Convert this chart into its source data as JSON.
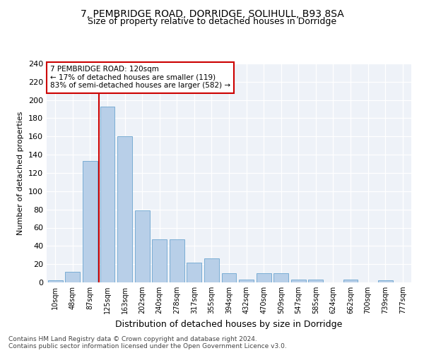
{
  "title": "7, PEMBRIDGE ROAD, DORRIDGE, SOLIHULL, B93 8SA",
  "subtitle": "Size of property relative to detached houses in Dorridge",
  "xlabel": "Distribution of detached houses by size in Dorridge",
  "ylabel": "Number of detached properties",
  "bar_labels": [
    "10sqm",
    "48sqm",
    "87sqm",
    "125sqm",
    "163sqm",
    "202sqm",
    "240sqm",
    "278sqm",
    "317sqm",
    "355sqm",
    "394sqm",
    "432sqm",
    "470sqm",
    "509sqm",
    "547sqm",
    "585sqm",
    "624sqm",
    "662sqm",
    "700sqm",
    "739sqm",
    "777sqm"
  ],
  "bar_values": [
    2,
    12,
    133,
    193,
    160,
    79,
    47,
    47,
    22,
    26,
    10,
    3,
    10,
    10,
    3,
    3,
    0,
    3,
    0,
    2,
    0
  ],
  "bar_color": "#b8cfe8",
  "bar_edgecolor": "#7aadd4",
  "vline_x": 2.5,
  "vline_color": "#cc0000",
  "annotation_line1": "7 PEMBRIDGE ROAD: 120sqm",
  "annotation_line2": "← 17% of detached houses are smaller (119)",
  "annotation_line3": "83% of semi-detached houses are larger (582) →",
  "annotation_box_edgecolor": "#cc0000",
  "ylim": [
    0,
    240
  ],
  "yticks": [
    0,
    20,
    40,
    60,
    80,
    100,
    120,
    140,
    160,
    180,
    200,
    220,
    240
  ],
  "background_color": "#eef2f8",
  "footer_line1": "Contains HM Land Registry data © Crown copyright and database right 2024.",
  "footer_line2": "Contains public sector information licensed under the Open Government Licence v3.0."
}
